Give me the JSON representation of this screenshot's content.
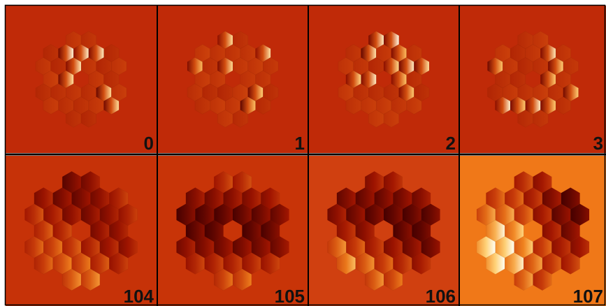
{
  "panels": [
    {
      "label": "0",
      "background": "#c02a08",
      "pattern": "sparse",
      "seed": 11
    },
    {
      "label": "1",
      "background": "#c02a08",
      "pattern": "sparse",
      "seed": 23
    },
    {
      "label": "2",
      "background": "#c02a08",
      "pattern": "sparse",
      "seed": 37
    },
    {
      "label": "3",
      "background": "#c02a08",
      "pattern": "sparse",
      "seed": 41
    },
    {
      "label": "104",
      "background": "#c63208",
      "pattern": "smooth",
      "seed": 104
    },
    {
      "label": "105",
      "background": "#c83408",
      "pattern": "smooth",
      "seed": 105
    },
    {
      "label": "106",
      "background": "#d04010",
      "pattern": "smooth",
      "seed": 106
    },
    {
      "label": "107",
      "background": "#f07818",
      "pattern": "smooth",
      "seed": 107
    }
  ]
}
